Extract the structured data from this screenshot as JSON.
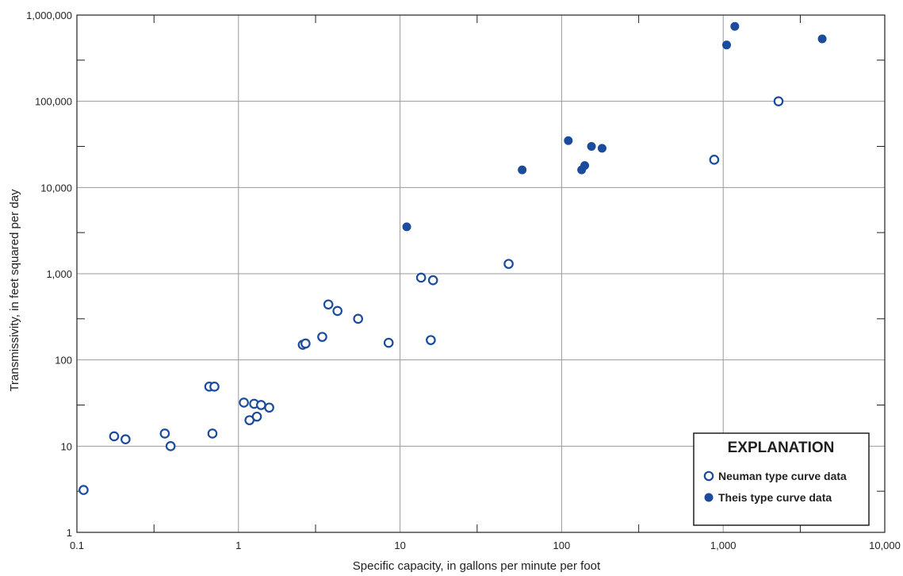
{
  "chart_data": {
    "type": "scatter",
    "xlabel": "Specific capacity, in gallons per minute per foot",
    "ylabel": "Transmissivity, in feet squared per day",
    "x_scale": "log",
    "y_scale": "log",
    "xlim": [
      0.1,
      10000
    ],
    "ylim": [
      1,
      1000000
    ],
    "x_ticks": [
      0.1,
      1,
      10,
      100,
      1000,
      10000
    ],
    "x_tick_labels": [
      "0.1",
      "1",
      "10",
      "100",
      "1,000",
      "10,000"
    ],
    "y_ticks": [
      1,
      10,
      100,
      1000,
      10000,
      100000,
      1000000
    ],
    "y_tick_labels": [
      "1",
      "10",
      "100",
      "1,000",
      "10,000",
      "100,000",
      "1,000,000"
    ],
    "grid": true,
    "legend": {
      "title": "EXPLANATION",
      "position": "bottom-right"
    },
    "series": [
      {
        "name": "Neuman type curve data",
        "marker": "open-circle",
        "color": "#1a4b9c",
        "points": [
          {
            "x": 0.11,
            "y": 3.1
          },
          {
            "x": 0.17,
            "y": 13
          },
          {
            "x": 0.2,
            "y": 12
          },
          {
            "x": 0.35,
            "y": 14
          },
          {
            "x": 0.38,
            "y": 10
          },
          {
            "x": 0.66,
            "y": 49
          },
          {
            "x": 0.71,
            "y": 49
          },
          {
            "x": 0.69,
            "y": 14
          },
          {
            "x": 1.08,
            "y": 32
          },
          {
            "x": 1.17,
            "y": 20
          },
          {
            "x": 1.25,
            "y": 31
          },
          {
            "x": 1.3,
            "y": 22
          },
          {
            "x": 1.38,
            "y": 30
          },
          {
            "x": 1.55,
            "y": 28
          },
          {
            "x": 2.5,
            "y": 150
          },
          {
            "x": 2.6,
            "y": 155
          },
          {
            "x": 3.3,
            "y": 185
          },
          {
            "x": 3.6,
            "y": 440
          },
          {
            "x": 4.1,
            "y": 370
          },
          {
            "x": 5.5,
            "y": 300
          },
          {
            "x": 8.5,
            "y": 158
          },
          {
            "x": 13.5,
            "y": 900
          },
          {
            "x": 15.5,
            "y": 170
          },
          {
            "x": 16,
            "y": 840
          },
          {
            "x": 47,
            "y": 1300
          },
          {
            "x": 880,
            "y": 21000
          },
          {
            "x": 2200,
            "y": 100000
          }
        ]
      },
      {
        "name": "Theis type curve data",
        "marker": "filled-circle",
        "color": "#1a4b9c",
        "points": [
          {
            "x": 11,
            "y": 3500
          },
          {
            "x": 57,
            "y": 16000
          },
          {
            "x": 110,
            "y": 35000
          },
          {
            "x": 133,
            "y": 16000
          },
          {
            "x": 139,
            "y": 18000
          },
          {
            "x": 153,
            "y": 30000
          },
          {
            "x": 178,
            "y": 28500
          },
          {
            "x": 1050,
            "y": 450000
          },
          {
            "x": 1180,
            "y": 740000
          },
          {
            "x": 4100,
            "y": 530000
          }
        ]
      }
    ]
  }
}
